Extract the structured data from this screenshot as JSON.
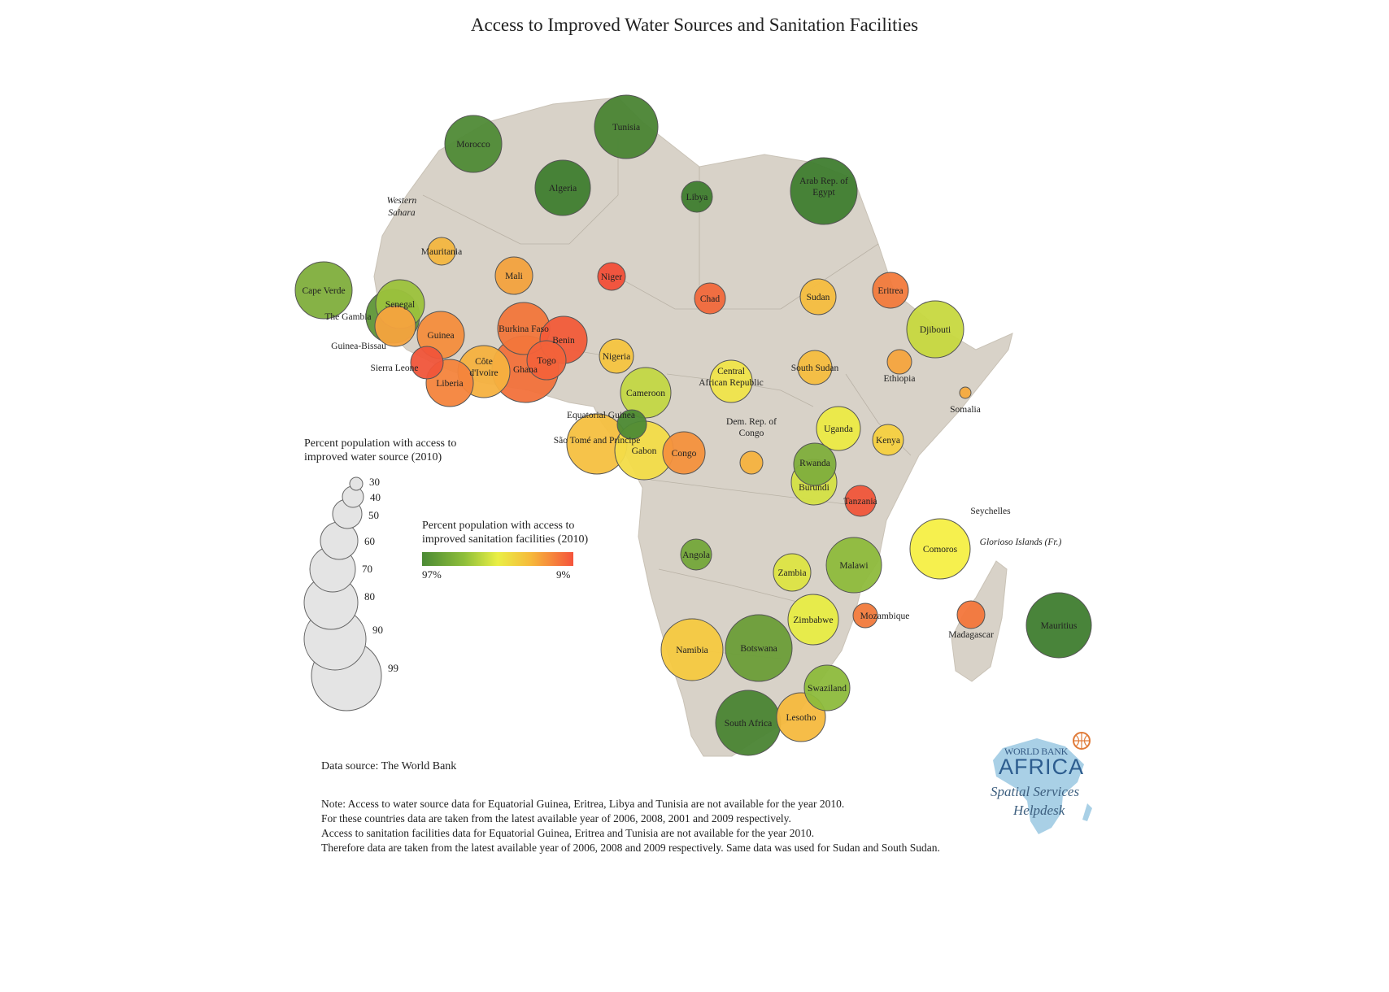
{
  "title": "Access to Improved Water Sources and Sanitation Facilities",
  "legend_water": {
    "title_line1": "Percent population with access to",
    "title_line2": "improved water source (2010)",
    "sizes": [
      {
        "value": 30,
        "label": "30"
      },
      {
        "value": 40,
        "label": "40"
      },
      {
        "value": 50,
        "label": "50"
      },
      {
        "value": 60,
        "label": "60"
      },
      {
        "value": 70,
        "label": "70"
      },
      {
        "value": 80,
        "label": "80"
      },
      {
        "value": 90,
        "label": "90"
      },
      {
        "value": 99,
        "label": "99"
      }
    ]
  },
  "legend_sanitation": {
    "title_line1": "Percent population with access to",
    "title_line2": "improved sanitation facilities (2010)",
    "low_label": "97%",
    "high_label": "9%"
  },
  "region_labels": [
    {
      "text": "Western",
      "italic": true
    },
    {
      "text": "Sahara",
      "italic": true
    },
    {
      "text": "Seychelles",
      "italic": false
    },
    {
      "text": "Glorioso Islands (Fr.)",
      "italic": true
    }
  ],
  "countries": [
    {
      "name": "Morocco",
      "label": [
        "Morocco"
      ],
      "color": "#4f8a36"
    },
    {
      "name": "Tunisia",
      "label": [
        "Tunisia"
      ],
      "color": "#4a8433"
    },
    {
      "name": "Algeria",
      "label": [
        "Algeria"
      ],
      "color": "#3f7d2f"
    },
    {
      "name": "Libya",
      "label": [
        "Libya"
      ],
      "color": "#3f7d2f"
    },
    {
      "name": "Egypt",
      "label": [
        "Arab Rep. of",
        "Egypt"
      ],
      "color": "#3f7d2f"
    },
    {
      "name": "Mauritania",
      "label": [
        "Mauritania"
      ],
      "color": "#f3b640"
    },
    {
      "name": "Mali",
      "label": [
        "Mali"
      ],
      "color": "#f3a23e"
    },
    {
      "name": "Niger",
      "label": [
        "Niger"
      ],
      "color": "#f24e38"
    },
    {
      "name": "Chad",
      "label": [
        "Chad"
      ],
      "color": "#f1683b"
    },
    {
      "name": "Sudan",
      "label": [
        "Sudan"
      ],
      "color": "#f5bd3f"
    },
    {
      "name": "Eritrea",
      "label": [
        "Eritrea"
      ],
      "color": "#f27a3c"
    },
    {
      "name": "Djibouti",
      "label": [
        "Djibouti"
      ],
      "color": "#c7d83f"
    },
    {
      "name": "Cape Verde",
      "label": [
        "Cape Verde"
      ],
      "color": "#7fae3c"
    },
    {
      "name": "The Gambia",
      "label": [
        "The Gambia"
      ],
      "color": "#5f9637"
    },
    {
      "name": "Senegal",
      "label": [
        "Senegal"
      ],
      "color": "#9cc23c"
    },
    {
      "name": "Guinea-Bissau",
      "label": [
        "Guinea-Bissau"
      ],
      "color": "#f6a33e"
    },
    {
      "name": "Guinea",
      "label": [
        "Guinea"
      ],
      "color": "#f48d3d"
    },
    {
      "name": "Burkina Faso",
      "label": [
        "Burkina Faso"
      ],
      "color": "#f2763b"
    },
    {
      "name": "Benin",
      "label": [
        "Benin"
      ],
      "color": "#f25b39"
    },
    {
      "name": "Sierra Leone",
      "label": [
        "Sierra Leone"
      ],
      "color": "#f0553a"
    },
    {
      "name": "Liberia",
      "label": [
        "Liberia"
      ],
      "color": "#f4843c"
    },
    {
      "name": "Cote d'Ivoire",
      "label": [
        "Côte",
        "d'Ivoire"
      ],
      "color": "#f5b13f"
    },
    {
      "name": "Ghana",
      "label": [
        "Ghana"
      ],
      "color": "#f2713b"
    },
    {
      "name": "Togo",
      "label": [
        "Togo"
      ],
      "color": "#f2623a"
    },
    {
      "name": "Nigeria",
      "label": [
        "Nigeria"
      ],
      "color": "#f6c440"
    },
    {
      "name": "Cameroon",
      "label": [
        "Cameroon"
      ],
      "color": "#c3d744"
    },
    {
      "name": "Central African Republic",
      "label": [
        "Central",
        "African Republic"
      ],
      "color": "#f0e44a"
    },
    {
      "name": "South Sudan",
      "label": [
        "South Sudan"
      ],
      "color": "#f5bd3f"
    },
    {
      "name": "Ethiopia",
      "label": [
        "Ethiopia"
      ],
      "color": "#f5a43e"
    },
    {
      "name": "Somalia",
      "label": [
        "Somalia"
      ],
      "color": "#f5aa3e"
    },
    {
      "name": "Equatorial Guinea",
      "label": [
        "Equatorial Guinea"
      ],
      "color": "#4d8a34"
    },
    {
      "name": "Sao Tome and Principe",
      "label": [
        "São Tomé and Príncipe"
      ],
      "color": "#f5c040"
    },
    {
      "name": "Gabon",
      "label": [
        "Gabon"
      ],
      "color": "#f3dc48"
    },
    {
      "name": "Congo",
      "label": [
        "Congo"
      ],
      "color": "#f4913d"
    },
    {
      "name": "Dem. Rep. of Congo",
      "label": [
        "Dem. Rep. of",
        "Congo"
      ],
      "color": "#f6b23f"
    },
    {
      "name": "Uganda",
      "label": [
        "Uganda"
      ],
      "color": "#ecea45"
    },
    {
      "name": "Kenya",
      "label": [
        "Kenya"
      ],
      "color": "#f5d040"
    },
    {
      "name": "Rwanda",
      "label": [
        "Rwanda"
      ],
      "color": "#7fae3c"
    },
    {
      "name": "Burundi",
      "label": [
        "Burundi"
      ],
      "color": "#d4e044"
    },
    {
      "name": "Tanzania",
      "label": [
        "Tanzania"
      ],
      "color": "#f0553a"
    },
    {
      "name": "Angola",
      "label": [
        "Angola"
      ],
      "color": "#74a63a"
    },
    {
      "name": "Zambia",
      "label": [
        "Zambia"
      ],
      "color": "#dde443"
    },
    {
      "name": "Malawi",
      "label": [
        "Malawi"
      ],
      "color": "#8ebb3c"
    },
    {
      "name": "Comoros",
      "label": [
        "Comoros"
      ],
      "color": "#f5ef45"
    },
    {
      "name": "Zimbabwe",
      "label": [
        "Zimbabwe"
      ],
      "color": "#e8ec45"
    },
    {
      "name": "Mozambique",
      "label": [
        "Mozambique"
      ],
      "color": "#f17a3c"
    },
    {
      "name": "Madagascar",
      "label": [
        "Madagascar"
      ],
      "color": "#f3763b"
    },
    {
      "name": "Mauritius",
      "label": [
        "Mauritius"
      ],
      "color": "#3f7d2f"
    },
    {
      "name": "Namibia",
      "label": [
        "Namibia"
      ],
      "color": "#f5c940"
    },
    {
      "name": "Botswana",
      "label": [
        "Botswana"
      ],
      "color": "#6b9d38"
    },
    {
      "name": "Swaziland",
      "label": [
        "Swaziland"
      ],
      "color": "#8dbb3c"
    },
    {
      "name": "South Africa",
      "label": [
        "South Africa"
      ],
      "color": "#4a8433"
    },
    {
      "name": "Lesotho",
      "label": [
        "Lesotho"
      ],
      "color": "#f6b93e"
    }
  ],
  "data_source": "Data source: The World Bank",
  "note_lines": [
    "Note: Access to water source data for Equatorial Guinea, Eritrea, Libya and Tunisia are not available for the year 2010.",
    "For these countries data are taken from the latest available year of 2006, 2008, 2001 and 2009 respectively.",
    "Access to sanitation facilities data for Equatorial Guinea, Eritrea and Tunisia are not available for the year 2010.",
    "Therefore data are taken from the latest available year of 2006, 2008 and 2009 respectively. Same data was used for Sudan and South Sudan."
  ],
  "logo": {
    "line1": "WORLD BANK",
    "line2": "AFRICA",
    "line3": "Spatial Services",
    "line4": "Helpdesk"
  }
}
